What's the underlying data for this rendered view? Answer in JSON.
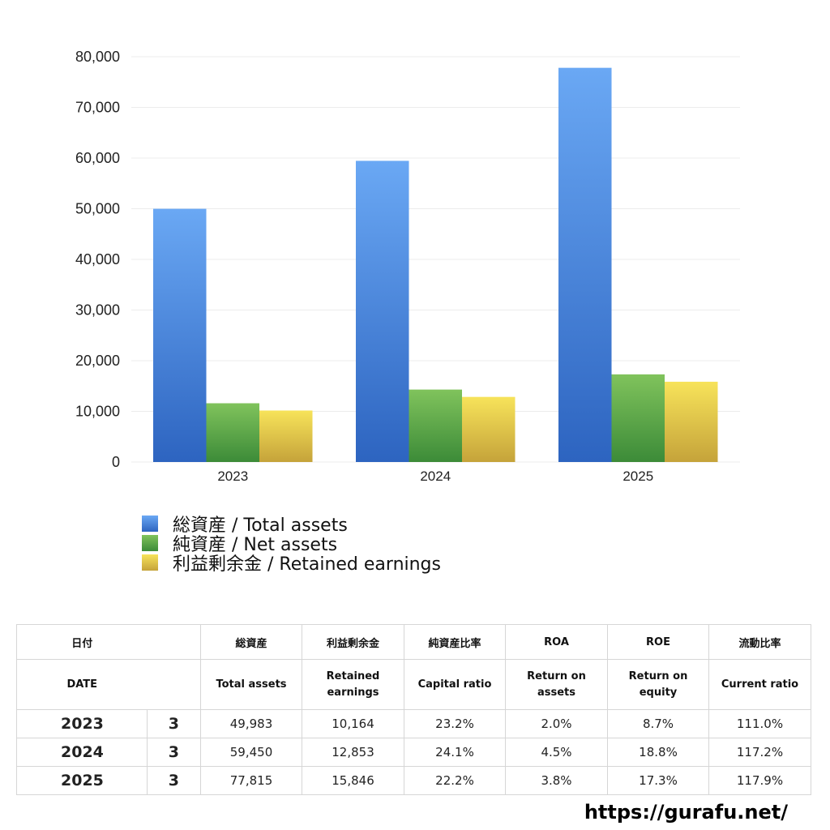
{
  "chart_data": {
    "type": "bar",
    "categories": [
      "2023",
      "2024",
      "2025"
    ],
    "series": [
      {
        "name": "総資産 / Total assets",
        "values": [
          49983,
          59450,
          77815
        ],
        "color_top": "#6aa8f4",
        "color_bottom": "#2d64c0"
      },
      {
        "name": "純資産 / Net assets",
        "values": [
          11600,
          14300,
          17300
        ],
        "color_top": "#80c35c",
        "color_bottom": "#3c8b38"
      },
      {
        "name": "利益剰余金 / Retained earnings",
        "values": [
          10164,
          12853,
          15846
        ],
        "color_top": "#f7e35a",
        "color_bottom": "#c5a33a"
      }
    ],
    "ylim": [
      0,
      80000
    ],
    "yticks": [
      "0",
      "10,000",
      "20,000",
      "30,000",
      "40,000",
      "50,000",
      "60,000",
      "70,000",
      "80,000"
    ],
    "ytick_values": [
      0,
      10000,
      20000,
      30000,
      40000,
      50000,
      60000,
      70000,
      80000
    ],
    "grid": true,
    "legend_position": "bottom-left"
  },
  "table": {
    "header_jp": {
      "date": "日付",
      "total_assets": "総資産",
      "retained": "利益剰余金",
      "capital_ratio": "純資産比率",
      "roa": "ROA",
      "roe": "ROE",
      "current_ratio": "流動比率"
    },
    "header_en": {
      "date": "DATE",
      "total_assets": "Total assets",
      "retained_1": "Retained",
      "retained_2": "earnings",
      "capital_ratio": "Capital ratio",
      "roa_1": "Return on",
      "roa_2": "assets",
      "roe_1": "Return on",
      "roe_2": "equity",
      "current_ratio": "Current ratio"
    },
    "rows": [
      {
        "year": "2023",
        "month": "3",
        "total_assets": "49,983",
        "retained": "10,164",
        "capital_ratio": "23.2%",
        "roa": "2.0%",
        "roe": "8.7%",
        "current_ratio": "111.0%"
      },
      {
        "year": "2024",
        "month": "3",
        "total_assets": "59,450",
        "retained": "12,853",
        "capital_ratio": "24.1%",
        "roa": "4.5%",
        "roe": "18.8%",
        "current_ratio": "117.2%"
      },
      {
        "year": "2025",
        "month": "3",
        "total_assets": "77,815",
        "retained": "15,846",
        "capital_ratio": "22.2%",
        "roa": "3.8%",
        "roe": "17.3%",
        "current_ratio": "117.9%"
      }
    ]
  },
  "footer": {
    "url": "https://gurafu.net/"
  }
}
